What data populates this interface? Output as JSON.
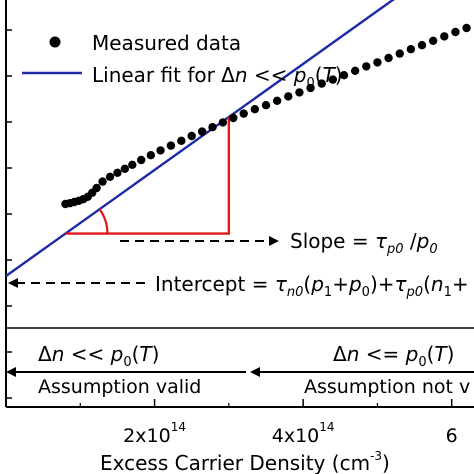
{
  "chart_data": {
    "type": "scatter",
    "xlabel": "Excess Carrier Density (cm",
    "xlabel_sup": "-3",
    "x_ticks": [
      {
        "value": 200000000000000.0,
        "mantissa": "2x10",
        "exp": "14"
      },
      {
        "value": 400000000000000.0,
        "mantissa": "4x10",
        "exp": "14"
      },
      {
        "value": 600000000000000.0,
        "mantissa": "6",
        "exp": ""
      }
    ],
    "xlim": [
      0,
      630000000000000.0
    ],
    "legend": {
      "placement": "top",
      "measured_label": "Measured data",
      "fit_label_prefix": "Linear fit for ",
      "fit_label_delta": "Δ",
      "fit_label_n": "n",
      "fit_label_mid": " << ",
      "fit_label_p": "p",
      "fit_label_sub": "0",
      "fit_label_paren_open": "(",
      "fit_label_T": "T",
      "fit_label_paren_close": ")"
    },
    "colors": {
      "fit_line": "#1f2aa6",
      "triangle": "#e01a1a",
      "points": "#000000",
      "arrows": "#000000"
    },
    "series": [
      {
        "name": "Measured data",
        "x": [
          80000000000000.0,
          86000000000000.0,
          92000000000000.0,
          98000000000000.0,
          104000000000000.0,
          110000000000000.0,
          116000000000000.0,
          122000000000000.0,
          130000000000000.0,
          140000000000000.0,
          150000000000000.0,
          160000000000000.0,
          170000000000000.0,
          182000000000000.0,
          195000000000000.0,
          208000000000000.0,
          222000000000000.0,
          236000000000000.0,
          250000000000000.0,
          264000000000000.0,
          278000000000000.0,
          292000000000000.0,
          306000000000000.0,
          320000000000000.0,
          335000000000000.0,
          350000000000000.0,
          365000000000000.0,
          380000000000000.0,
          395000000000000.0,
          410000000000000.0,
          425000000000000.0,
          440000000000000.0,
          455000000000000.0,
          470000000000000.0,
          485000000000000.0,
          500000000000000.0,
          515000000000000.0,
          530000000000000.0,
          545000000000000.0,
          560000000000000.0,
          575000000000000.0,
          590000000000000.0,
          605000000000000.0,
          620000000000000.0
        ],
        "y": [
          0.18,
          0.182,
          0.185,
          0.188,
          0.192,
          0.198,
          0.208,
          0.22,
          0.236,
          0.248,
          0.258,
          0.268,
          0.278,
          0.29,
          0.302,
          0.314,
          0.326,
          0.338,
          0.35,
          0.361,
          0.372,
          0.384,
          0.395,
          0.406,
          0.417,
          0.427,
          0.438,
          0.449,
          0.459,
          0.47,
          0.481,
          0.491,
          0.502,
          0.513,
          0.524,
          0.534,
          0.545,
          0.556,
          0.567,
          0.577,
          0.588,
          0.599,
          0.61,
          0.62
        ]
      },
      {
        "name": "Linear fit for Δn << p0(T)",
        "x": [
          0,
          630000000000000.0
        ],
        "y": [
          0.0,
          0.835
        ]
      }
    ],
    "annotations": {
      "slope_prefix": "Slope = ",
      "slope_tau": "τ",
      "slope_tau_sub": "p0",
      "slope_div": " /",
      "slope_p": "p",
      "slope_p_sub": "0",
      "intercept_prefix": "Intercept = ",
      "intercept_tau1": "τ",
      "intercept_tau1_sub": "n0",
      "intercept_mid1": "(",
      "intercept_p1": "p",
      "intercept_p1_sub": "1",
      "intercept_plus": "+",
      "intercept_p0": "p",
      "intercept_p0_sub": "0",
      "intercept_mid2": ")+",
      "intercept_tau2": "τ",
      "intercept_tau2_sub": "p0",
      "intercept_mid3": "(",
      "intercept_n1": "n",
      "intercept_n1_sub": "1",
      "intercept_tail": "+",
      "region_left_delta": "Δ",
      "region_left_n": "n",
      "region_left_op": " << ",
      "region_left_p": "p",
      "region_left_sub": "0",
      "region_left_open": "(",
      "region_left_T": "T",
      "region_left_close": ")",
      "region_left_text": "Assumption valid",
      "region_right_delta": "Δ",
      "region_right_n": "n",
      "region_right_op": " <= ",
      "region_right_p": "p",
      "region_right_sub": "0",
      "region_right_open": "(",
      "region_right_T": "T",
      "region_right_close": ")",
      "region_right_text": "Assumption not v"
    }
  }
}
